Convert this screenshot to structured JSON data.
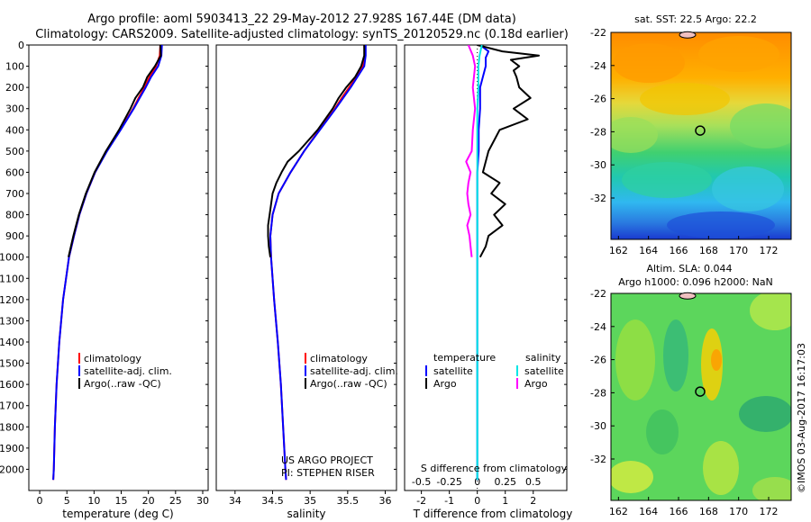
{
  "header": {
    "title_line1": "Argo profile: aoml 5903413_22 29-May-2012 27.928S 167.44E (DM data)",
    "title_line2": "Climatology: CARS2009. Satellite-adjusted climatology: synTS_20120529.nc (0.18d earlier)"
  },
  "colors": {
    "climatology": "#ff0000",
    "satellite": "#0000ff",
    "argo": "#000000",
    "satellite_s": "#00e5e5",
    "argo_s": "#ff00ff"
  },
  "chart_data": [
    {
      "type": "line",
      "id": "temperature",
      "xlabel": "temperature (deg C)",
      "ylabel": "",
      "xlim": [
        -2,
        31
      ],
      "ylim": [
        2100,
        0
      ],
      "xticks": [
        0,
        5,
        10,
        15,
        20,
        25,
        30
      ],
      "yticks": [
        0,
        100,
        200,
        300,
        400,
        500,
        600,
        700,
        800,
        900,
        1000,
        1100,
        1200,
        1300,
        1400,
        1500,
        1600,
        1700,
        1800,
        1900,
        2000
      ],
      "legend": [
        "climatology",
        "satellite-adj. clim.",
        "Argo(..raw -QC)"
      ],
      "series": [
        {
          "name": "climatology",
          "depth": [
            0,
            50,
            100,
            150,
            200,
            250,
            300,
            400,
            500,
            600,
            700,
            800,
            900,
            1000,
            1200,
            1400,
            1600,
            1800,
            2000,
            2050
          ],
          "values": [
            22.2,
            22.1,
            21.4,
            20.2,
            19.3,
            18.2,
            17.2,
            14.8,
            12.3,
            10.2,
            8.6,
            7.3,
            6.3,
            5.4,
            4.3,
            3.6,
            3.1,
            2.8,
            2.6,
            2.5
          ]
        },
        {
          "name": "satellite-adj. clim.",
          "depth": [
            0,
            50,
            100,
            150,
            200,
            250,
            300,
            400,
            500,
            600,
            700,
            800,
            900,
            1000,
            1200,
            1400,
            1600,
            1800,
            2000,
            2050
          ],
          "values": [
            22.5,
            22.4,
            21.8,
            20.5,
            19.5,
            18.4,
            17.3,
            14.9,
            12.4,
            10.2,
            8.6,
            7.3,
            6.3,
            5.4,
            4.3,
            3.6,
            3.1,
            2.8,
            2.6,
            2.5
          ]
        },
        {
          "name": "Argo(..raw -QC)",
          "depth": [
            0,
            50,
            100,
            150,
            200,
            250,
            300,
            400,
            500,
            600,
            700,
            800,
            900,
            1000
          ],
          "values": [
            22.2,
            22.3,
            21.2,
            19.8,
            19.0,
            17.6,
            16.7,
            14.6,
            12.2,
            10.1,
            8.5,
            7.2,
            6.2,
            5.3
          ]
        }
      ]
    },
    {
      "type": "line",
      "id": "salinity",
      "xlabel": "salinity",
      "ylabel": "",
      "xlim": [
        33.75,
        36.15
      ],
      "ylim": [
        2100,
        0
      ],
      "xticks": [
        34,
        34.5,
        35,
        35.5,
        36
      ],
      "legend": [
        "climatology",
        "satellite-adj. clim.",
        "Argo(..raw -QC)"
      ],
      "annotations": [
        "US ARGO PROJECT",
        "PI: STEPHEN RISER"
      ],
      "series": [
        {
          "name": "climatology",
          "depth": [
            0,
            50,
            100,
            150,
            200,
            250,
            300,
            400,
            500,
            600,
            700,
            800,
            900,
            1000,
            1200,
            1400,
            1600,
            1800,
            2000,
            2050
          ],
          "values": [
            35.72,
            35.73,
            35.7,
            35.62,
            35.52,
            35.42,
            35.33,
            35.12,
            34.92,
            34.74,
            34.58,
            34.5,
            34.47,
            34.48,
            34.52,
            34.57,
            34.61,
            34.64,
            34.67,
            34.68
          ]
        },
        {
          "name": "satellite-adj. clim.",
          "depth": [
            0,
            50,
            100,
            150,
            200,
            250,
            300,
            400,
            500,
            600,
            700,
            800,
            900,
            1000,
            1200,
            1400,
            1600,
            1800,
            2000,
            2050
          ],
          "values": [
            35.74,
            35.74,
            35.72,
            35.63,
            35.54,
            35.44,
            35.34,
            35.13,
            34.92,
            34.74,
            34.58,
            34.5,
            34.47,
            34.48,
            34.52,
            34.57,
            34.61,
            34.64,
            34.67,
            34.68
          ]
        },
        {
          "name": "Argo(..raw -QC)",
          "depth": [
            0,
            50,
            100,
            150,
            200,
            250,
            300,
            400,
            500,
            550,
            600,
            650,
            700,
            800,
            850,
            900,
            950,
            1000
          ],
          "values": [
            35.72,
            35.72,
            35.68,
            35.6,
            35.48,
            35.38,
            35.3,
            35.1,
            34.85,
            34.7,
            34.62,
            34.55,
            34.5,
            34.46,
            34.44,
            34.44,
            34.45,
            34.47
          ]
        }
      ]
    },
    {
      "type": "line",
      "id": "difference",
      "xlabel": "T difference from climatology",
      "xlabel_top": "S difference from climatology",
      "xlim": [
        -2.6,
        3.2
      ],
      "ylim": [
        2100,
        0
      ],
      "xticks": [
        -2,
        -1,
        0,
        1,
        2
      ],
      "xticks_s": [
        "-0.5",
        "-0.25",
        "0",
        "0.25",
        "0.5"
      ],
      "legend_headers": [
        "temperature",
        "salinity"
      ],
      "legend": [
        "satellite",
        "Argo",
        "satellite",
        "Argo"
      ],
      "series": [
        {
          "name": "satellite",
          "quantity": "T",
          "depth": [
            0,
            30,
            60,
            100,
            150,
            200,
            300,
            400,
            500,
            600,
            800,
            1000,
            1500,
            2050
          ],
          "values": [
            0.1,
            0.4,
            0.3,
            0.3,
            0.2,
            0.1,
            0.1,
            0.05,
            0.05,
            0.0,
            0.0,
            0.0,
            0.0,
            0.0
          ]
        },
        {
          "name": "Argo",
          "quantity": "T",
          "depth": [
            0,
            30,
            50,
            70,
            100,
            120,
            150,
            200,
            250,
            300,
            350,
            400,
            450,
            500,
            550,
            600,
            650,
            700,
            750,
            800,
            850,
            900,
            950,
            1000
          ],
          "values": [
            0,
            0.9,
            2.2,
            1.2,
            1.5,
            1.3,
            1.4,
            1.5,
            1.9,
            1.3,
            1.8,
            0.8,
            0.6,
            0.4,
            0.3,
            0.2,
            0.8,
            0.5,
            1.0,
            0.6,
            0.9,
            0.4,
            0.3,
            0.1
          ]
        },
        {
          "name": "satellite",
          "quantity": "S",
          "depth": [
            0,
            50,
            100,
            200,
            300,
            500,
            800,
            1000,
            1500,
            2050
          ],
          "values": [
            0.04,
            0.02,
            0.01,
            0.01,
            0.0,
            0.0,
            0.0,
            0.0,
            0.0,
            0.0
          ]
        },
        {
          "name": "Argo",
          "quantity": "S",
          "depth": [
            0,
            50,
            100,
            200,
            300,
            400,
            500,
            550,
            600,
            650,
            700,
            750,
            800,
            850,
            900,
            950,
            1000
          ],
          "values": [
            -0.08,
            -0.04,
            -0.02,
            -0.04,
            -0.02,
            -0.04,
            -0.05,
            -0.1,
            -0.06,
            -0.08,
            -0.09,
            -0.08,
            -0.06,
            -0.09,
            -0.07,
            -0.06,
            -0.05
          ]
        }
      ]
    },
    {
      "type": "heatmap",
      "id": "sst_map",
      "title": "sat. SST: 22.5  Argo: 22.2",
      "xlim": [
        161.5,
        173.5
      ],
      "ylim": [
        -34.5,
        -22
      ],
      "xticks": [
        162,
        164,
        166,
        168,
        170,
        172
      ],
      "yticks": [
        -22,
        -24,
        -26,
        -28,
        -30,
        -32
      ],
      "marker": {
        "lon": 167.44,
        "lat": -27.928
      }
    },
    {
      "type": "heatmap",
      "id": "sla_map",
      "title_lines": [
        "Altim. SLA: 0.044",
        "Argo h1000: 0.096 h2000: NaN"
      ],
      "xlim": [
        161.5,
        173.5
      ],
      "ylim": [
        -34.5,
        -22
      ],
      "xticks": [
        162,
        164,
        166,
        168,
        170,
        172
      ],
      "yticks": [
        -22,
        -24,
        -26,
        -28,
        -30,
        -32
      ],
      "marker": {
        "lon": 167.44,
        "lat": -27.928
      }
    }
  ],
  "credit": "©IMOS 03-Aug-2017 16:17:03"
}
